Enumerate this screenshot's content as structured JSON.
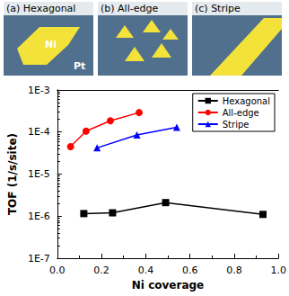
{
  "chart_data": {
    "type": "line",
    "panels": [
      "(a) Hexagonal",
      "(b) All-edge",
      "(c) Stripe"
    ],
    "annotations": [
      "Ni",
      "Pt"
    ],
    "x_label": "Ni coverage",
    "y_label": "TOF (1/s/site)",
    "log": "y",
    "grid": false,
    "legend": "upper right",
    "xlim": [
      0,
      1.0
    ],
    "xticks": [
      {
        "value": 0,
        "label": "0.0"
      },
      0.2,
      0.4,
      0.6,
      0.8,
      {
        "value": 1.0,
        "label": "1.0"
      }
    ],
    "ylim": [
      1e-07,
      0.001
    ],
    "yticks": [
      {
        "value": 1e-07,
        "label": "1E-7"
      },
      {
        "value": 1e-06,
        "label": "1E-6"
      },
      {
        "value": 1e-05,
        "label": "1E-5"
      },
      {
        "value": 0.0001,
        "label": "1E-4"
      },
      {
        "value": 0.001,
        "label": "1E-3"
      }
    ],
    "series": [
      {
        "name": "Hexagonal",
        "color": "#000000",
        "marker": "square",
        "x": [
          0.12,
          0.25,
          0.49,
          0.93
        ],
        "values": [
          1.15e-06,
          1.2e-06,
          2.1e-06,
          1.1e-06
        ]
      },
      {
        "name": "All-edge",
        "color": "#ff0000",
        "marker": "circle",
        "x": [
          0.06,
          0.13,
          0.24,
          0.37
        ],
        "values": [
          4.5e-05,
          0.000105,
          0.000185,
          0.00029
        ]
      },
      {
        "name": "Stripe",
        "color": "#0000ff",
        "marker": "triangle",
        "x": [
          0.18,
          0.36,
          0.54
        ],
        "values": [
          4.2e-05,
          8.5e-05,
          0.00013
        ]
      }
    ]
  }
}
